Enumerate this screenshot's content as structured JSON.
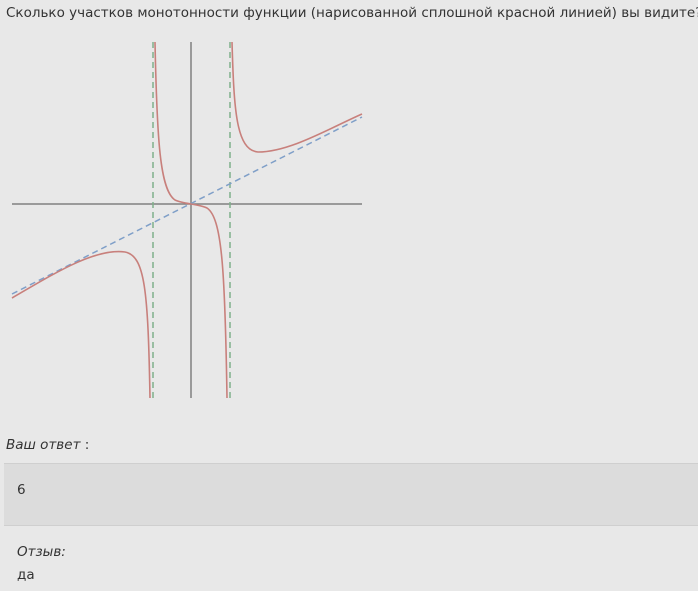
{
  "question": {
    "text": "Сколько участков монотонности функции (нарисованной сплошной красной линией) вы видите?"
  },
  "graph": {
    "colors": {
      "axis": "#808080",
      "curve": "#c8807c",
      "asymptote_vertical": "#7fb08a",
      "asymptote_oblique": "#7f9fc8"
    }
  },
  "answer": {
    "label": "Ваш ответ",
    "suffix": " :",
    "value": "6"
  },
  "feedback": {
    "label": "Отзыв:",
    "value": "да"
  }
}
